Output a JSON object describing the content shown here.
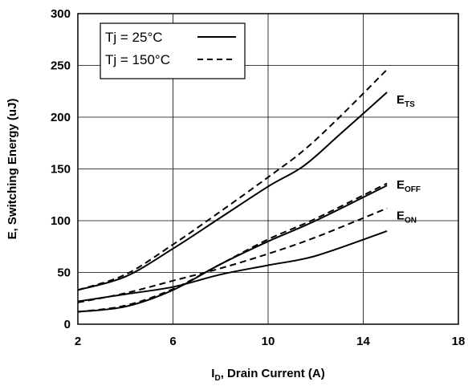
{
  "chart_data": {
    "type": "line",
    "xlabel_main": "I",
    "xlabel_sub": "D",
    "xlabel_rest": ", Drain Current (A)",
    "ylabel": "E, Switching Energy (uJ)",
    "xlim": [
      2,
      18
    ],
    "ylim": [
      0,
      300
    ],
    "xticks": [
      2,
      6,
      10,
      14,
      18
    ],
    "yticks": [
      0,
      50,
      100,
      150,
      200,
      250,
      300
    ],
    "grid": true,
    "legend_position": "top-left",
    "legend": [
      {
        "text": "Tj = 25°C",
        "style": "solid"
      },
      {
        "text": "Tj = 150°C",
        "style": "dashed"
      }
    ],
    "curve_labels": [
      {
        "main": "E",
        "sub": "TS",
        "x": 15.4,
        "y": 213
      },
      {
        "main": "E",
        "sub": "OFF",
        "x": 15.4,
        "y": 131
      },
      {
        "main": "E",
        "sub": "ON",
        "x": 15.4,
        "y": 101
      }
    ],
    "series": [
      {
        "curve": "ETS",
        "tj": "25",
        "style": "solid",
        "x": [
          2,
          4,
          6,
          8,
          10,
          11.5,
          13,
          15
        ],
        "y": [
          33,
          46,
          73,
          103,
          133,
          153,
          183,
          224
        ]
      },
      {
        "curve": "ETS",
        "tj": "150",
        "style": "dashed",
        "x": [
          2,
          4,
          6,
          8,
          10,
          11.5,
          13,
          15
        ],
        "y": [
          33,
          48,
          77,
          109,
          142,
          168,
          200,
          246
        ]
      },
      {
        "curve": "EOFF",
        "tj": "25",
        "style": "solid",
        "x": [
          2,
          4,
          6,
          8,
          10,
          12,
          15
        ],
        "y": [
          12,
          17,
          33,
          58,
          80,
          100,
          134
        ]
      },
      {
        "curve": "EOFF",
        "tj": "150",
        "style": "dashed",
        "x": [
          2,
          4,
          6,
          8,
          10,
          12,
          15
        ],
        "y": [
          12,
          18,
          34,
          58,
          82,
          102,
          136
        ]
      },
      {
        "curve": "EON",
        "tj": "25",
        "style": "solid",
        "x": [
          2,
          4,
          6,
          8,
          10,
          12,
          15
        ],
        "y": [
          22,
          29,
          36,
          48,
          57,
          66,
          90
        ]
      },
      {
        "curve": "EON",
        "tj": "150",
        "style": "dashed",
        "x": [
          2,
          4,
          6,
          8,
          10,
          12,
          15
        ],
        "y": [
          21,
          30,
          42,
          54,
          68,
          84,
          112
        ]
      }
    ]
  }
}
